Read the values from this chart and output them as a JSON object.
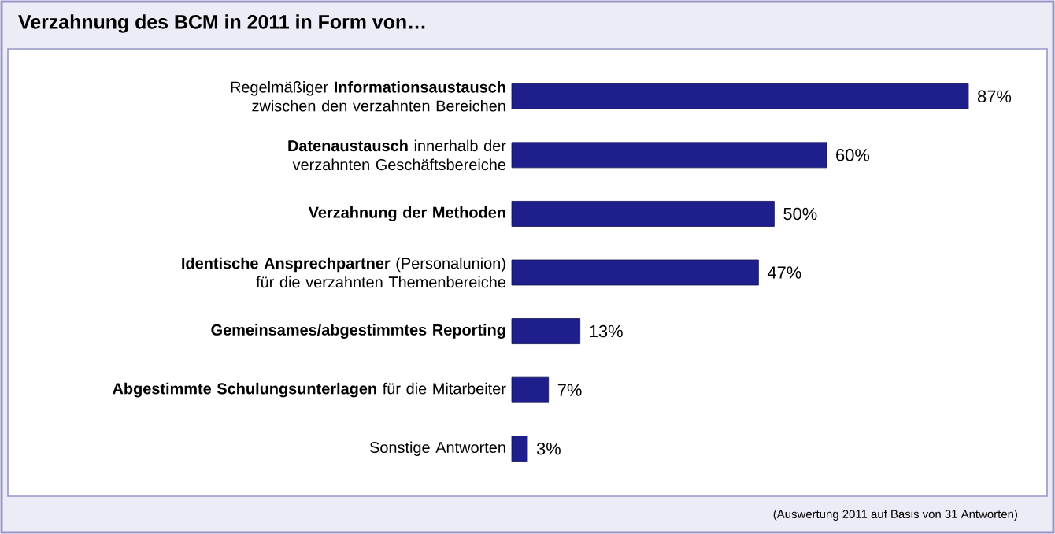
{
  "chart_data": {
    "type": "bar",
    "orientation": "horizontal",
    "title": "Verzahnung des BCM in 2011 in Form von…",
    "categories": [
      "Regelmäßiger **Informationsaustausch** zwischen den verzahnten Bereichen",
      "**Datenaustausch** innerhalb der verzahnten Geschäftsbereiche",
      "**Verzahnung der Methoden**",
      "**Identische Ansprechpartner** (Personalunion) für die verzahnten Themenbereiche",
      "**Gemeinsames/abgestimmtes Reporting**",
      "**Abgestimmte Schulungsunterlagen** für die Mitarbeiter",
      "Sonstige Antworten"
    ],
    "values": [
      87,
      60,
      50,
      47,
      13,
      7,
      3
    ],
    "value_labels": [
      "87%",
      "60%",
      "50%",
      "47%",
      "13%",
      "7%",
      "3%"
    ],
    "color": "#1e1e8c",
    "annotations": [
      "(Auswertung 2011 auf Basis von 31 Antworten)"
    ]
  }
}
